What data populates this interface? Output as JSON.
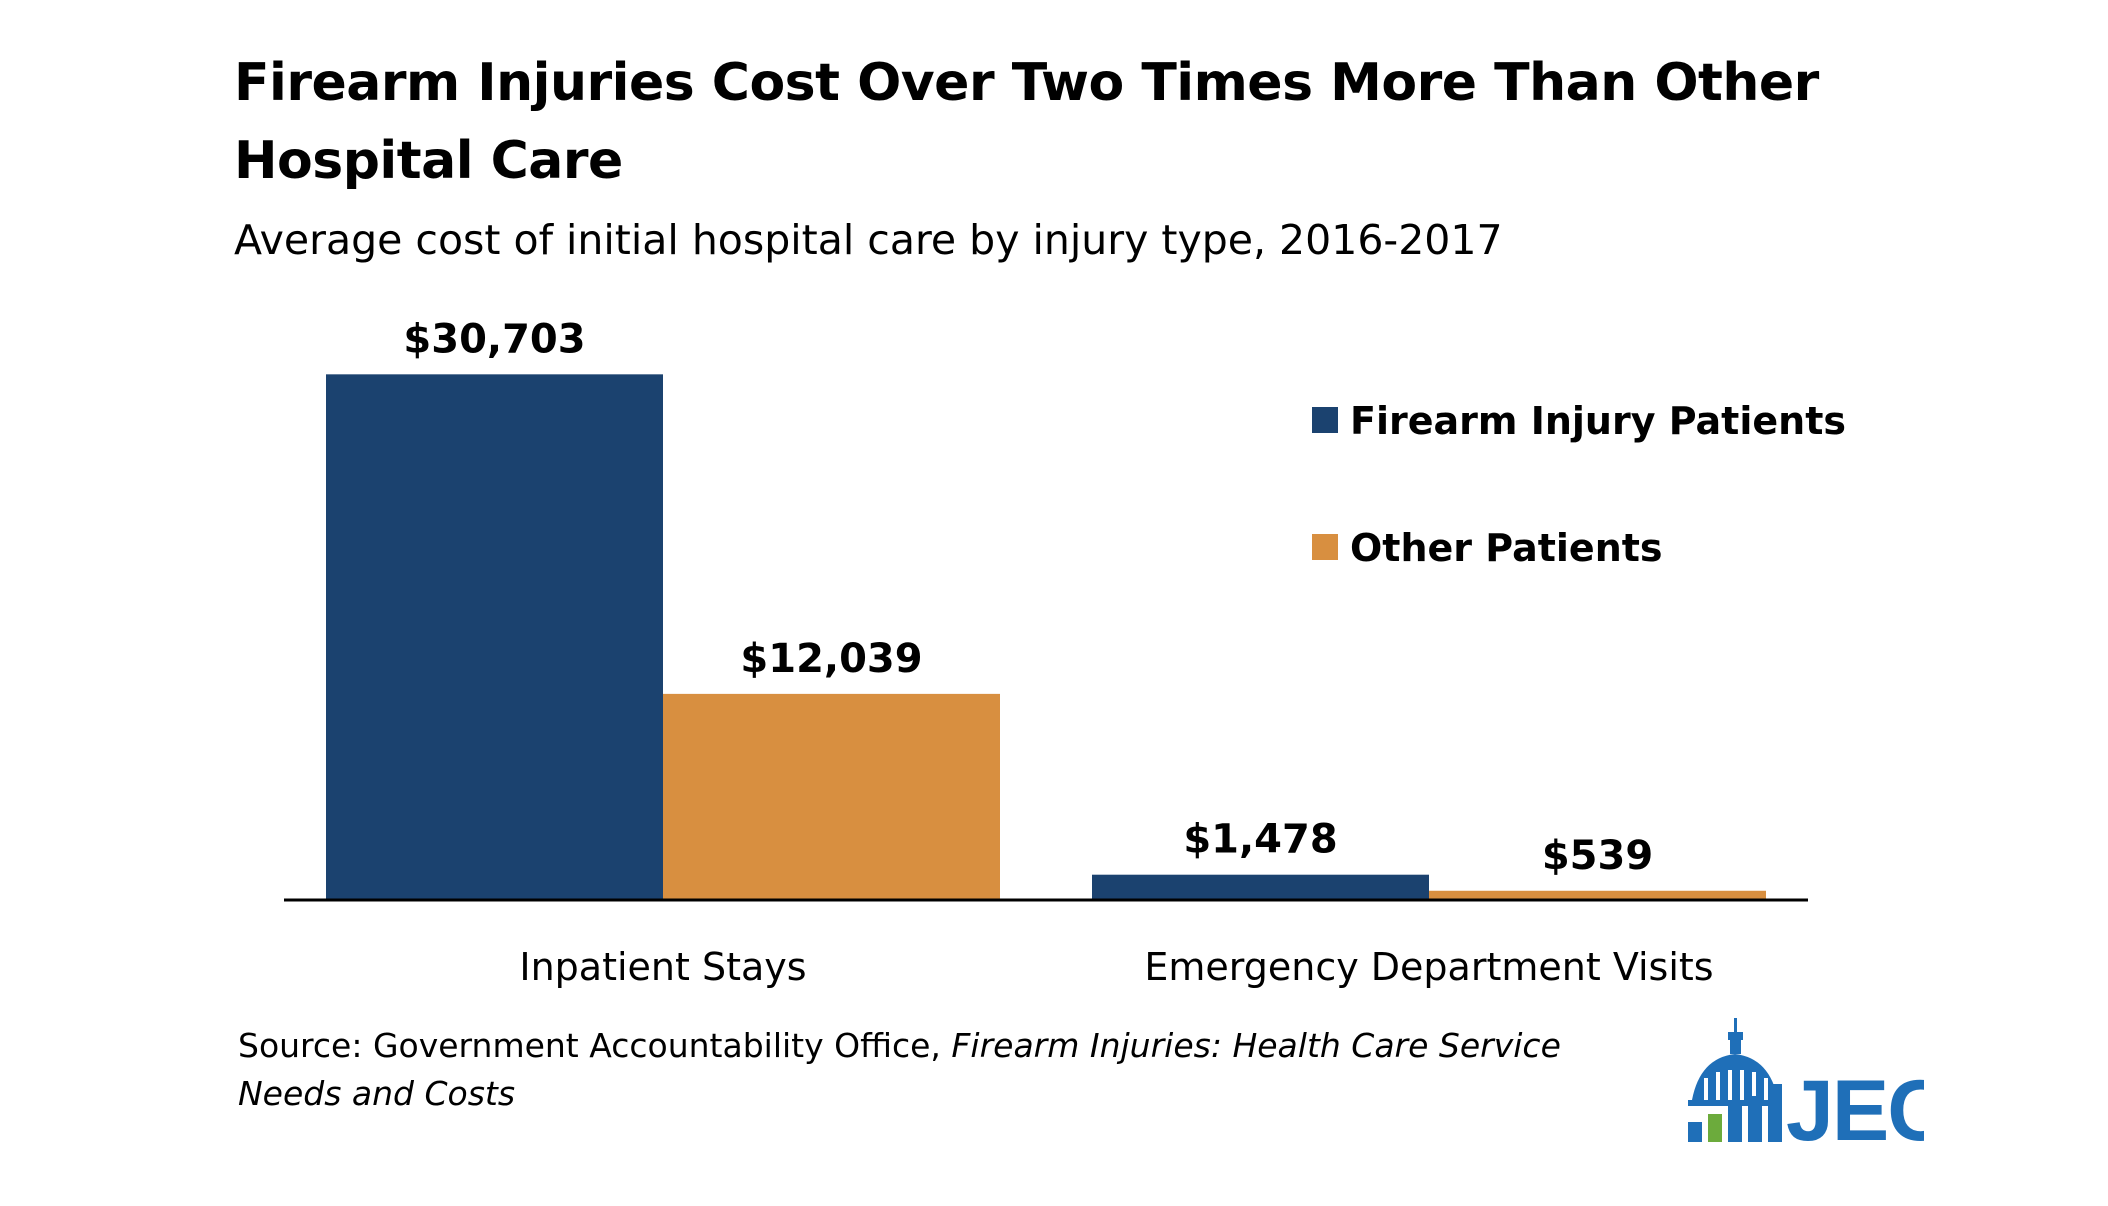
{
  "chart_data": {
    "type": "bar",
    "title": "Firearm Injuries Cost Over Two Times More Than Other Hospital Care",
    "subtitle": "Average cost of initial hospital care by injury type, 2016-2017",
    "categories": [
      "Inpatient Stays",
      "Emergency Department Visits"
    ],
    "series": [
      {
        "name": "Firearm Injury Patients",
        "color": "#1b426f",
        "values": [
          30703,
          1478
        ],
        "labels": [
          "$30,703",
          "$1,478"
        ]
      },
      {
        "name": "Other Patients",
        "color": "#d88f40",
        "values": [
          12039,
          539
        ],
        "labels": [
          "$12,039",
          "$539"
        ]
      }
    ],
    "ylim": [
      0,
      33000
    ],
    "grid": false,
    "legend_position": "top-right"
  },
  "source": {
    "prefix": "Source: Government Accountability Office, ",
    "title": "Firearm Injuries: Health Care Service Needs and Costs"
  },
  "logo": {
    "text": "JEC",
    "icon": "capitol-dome-bar-chart-icon",
    "color": "#1f6fb8"
  }
}
